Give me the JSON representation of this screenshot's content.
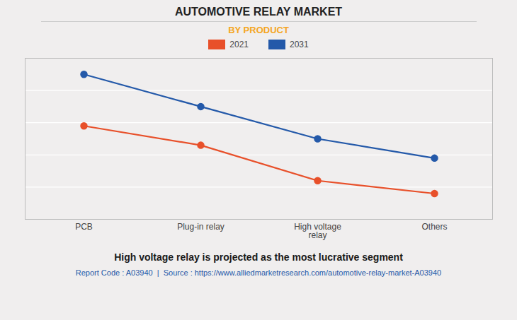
{
  "chart_data": {
    "type": "line",
    "title": "AUTOMOTIVE RELAY MARKET",
    "subtitle": "BY PRODUCT",
    "categories": [
      "PCB",
      "Plug-in relay",
      "High voltage\nrelay",
      "Others"
    ],
    "series": [
      {
        "name": "2021",
        "color": "#e8502a",
        "values": [
          58,
          46,
          24,
          16
        ]
      },
      {
        "name": "2031",
        "color": "#2459a9",
        "values": [
          90,
          70,
          50,
          38
        ]
      }
    ],
    "ylim": [
      0,
      100
    ],
    "yticks": [
      20,
      40,
      60,
      80,
      100
    ],
    "grid": true,
    "tick_labels": "x",
    "legend": "top",
    "marker": "circle",
    "annotations": [
      "High voltage relay is projected as the most lucrative segment",
      "Report Code : A03940  |  Source : https://www.alliedmarketresearch.com/automotive-relay-market-A03940"
    ]
  }
}
